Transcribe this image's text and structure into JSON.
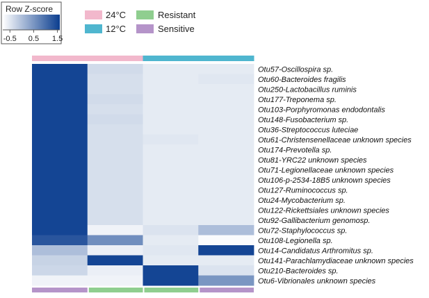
{
  "chart_data": {
    "type": "heatmap",
    "title": "",
    "color_key": {
      "title": "Row Z-score",
      "ticks": [
        "-0.5",
        "0.5",
        "1.5"
      ],
      "range": [
        -0.8,
        1.6
      ],
      "low_color": "#ffffff",
      "high_color": "#0a3d8f"
    },
    "legend": [
      {
        "label": "24°C",
        "color": "#f2b8cc"
      },
      {
        "label": "12°C",
        "color": "#4fb6cf"
      },
      {
        "label": "Resistant",
        "color": "#8fce8f"
      },
      {
        "label": "Sensitive",
        "color": "#b594c9"
      }
    ],
    "columns": [
      {
        "temperature": "24°C",
        "phenotype": "Sensitive",
        "temperature_color": "#f2b8cc",
        "phenotype_color": "#b594c9"
      },
      {
        "temperature": "24°C",
        "phenotype": "Resistant",
        "temperature_color": "#f2b8cc",
        "phenotype_color": "#8fce8f"
      },
      {
        "temperature": "12°C",
        "phenotype": "Resistant",
        "temperature_color": "#4fb6cf",
        "phenotype_color": "#8fce8f"
      },
      {
        "temperature": "12°C",
        "phenotype": "Sensitive",
        "temperature_color": "#4fb6cf",
        "phenotype_color": "#b594c9"
      }
    ],
    "rows": [
      "Otu57-Oscillospira sp.",
      "Otu60-Bacteroides fragilis",
      "Otu250-Lactobacillus ruminis",
      "Otu177-Treponema sp.",
      "Otu103-Porphyromonas endodontalis",
      "Otu148-Fusobacterium sp.",
      "Otu36-Streptococcus luteciae",
      "Otu61-Christensenellaceae unknown species",
      "Otu174-Prevotella sp.",
      "Otu81-YRC22 unknown species",
      "Otu71-Legionellaceae unknown species",
      "Otu106-p-2534-18B5 unknown species",
      "Otu127-Ruminococcus sp.",
      "Otu24-Mycobacterium sp.",
      "Otu122-Rickettsiales unknown species",
      "Otu92-Gallibacterium genomosp.",
      "Otu72-Staphylococcus sp.",
      "Otu108-Legionella sp.",
      "Otu14-Candidatus Arthromitus sp.",
      "Otu141-Parachlamydiaceae unknown species",
      "Otu210-Bacteroides sp.",
      "Otu6-Vibrionales unknown species"
    ],
    "values": [
      [
        1.5,
        -0.35,
        -0.55,
        -0.55
      ],
      [
        1.5,
        -0.4,
        -0.55,
        -0.5
      ],
      [
        1.5,
        -0.4,
        -0.55,
        -0.55
      ],
      [
        1.5,
        -0.35,
        -0.55,
        -0.55
      ],
      [
        1.5,
        -0.4,
        -0.55,
        -0.55
      ],
      [
        1.5,
        -0.35,
        -0.55,
        -0.55
      ],
      [
        1.5,
        -0.4,
        -0.55,
        -0.55
      ],
      [
        1.5,
        -0.4,
        -0.5,
        -0.55
      ],
      [
        1.5,
        -0.4,
        -0.55,
        -0.55
      ],
      [
        1.5,
        -0.4,
        -0.55,
        -0.55
      ],
      [
        1.5,
        -0.4,
        -0.55,
        -0.55
      ],
      [
        1.5,
        -0.4,
        -0.55,
        -0.55
      ],
      [
        1.5,
        -0.4,
        -0.55,
        -0.55
      ],
      [
        1.5,
        -0.4,
        -0.55,
        -0.55
      ],
      [
        1.5,
        -0.4,
        -0.55,
        -0.55
      ],
      [
        1.5,
        -0.4,
        -0.55,
        -0.55
      ],
      [
        1.5,
        -0.65,
        -0.45,
        0.0
      ],
      [
        1.3,
        0.6,
        -0.55,
        -0.75
      ],
      [
        0.0,
        -0.6,
        -0.5,
        1.5
      ],
      [
        -0.25,
        1.5,
        -0.55,
        -0.55
      ],
      [
        -0.3,
        -0.6,
        1.5,
        -0.45
      ],
      [
        -0.65,
        -0.65,
        1.5,
        0.5
      ]
    ]
  }
}
